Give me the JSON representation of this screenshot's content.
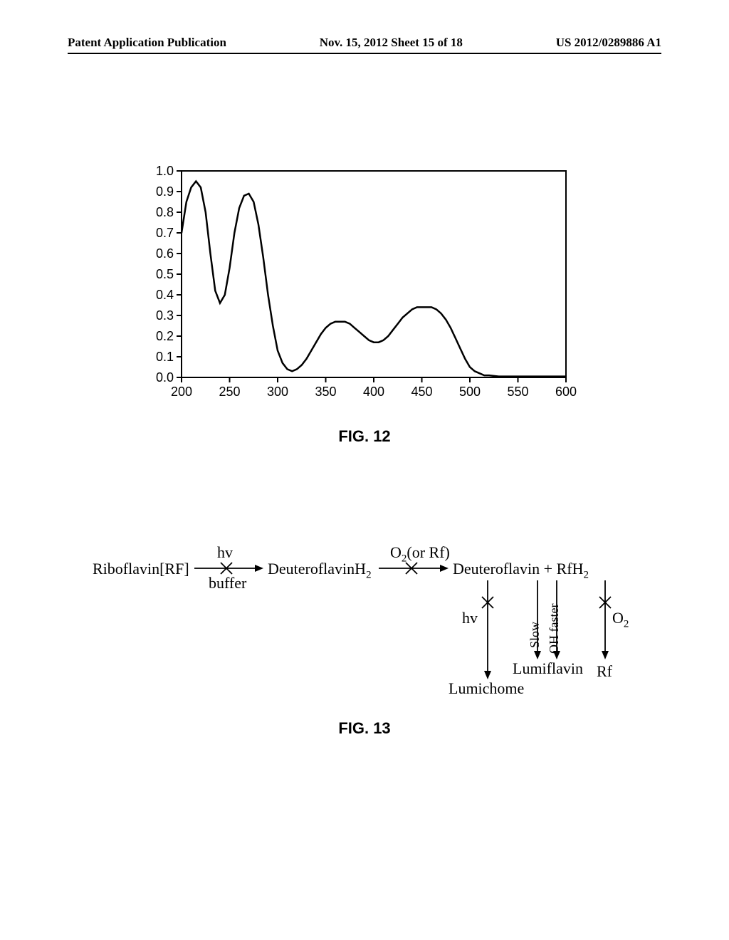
{
  "header": {
    "left": "Patent Application Publication",
    "center": "Nov. 15, 2012  Sheet 15 of 18",
    "right": "US 2012/0289886 A1"
  },
  "fig12": {
    "caption": "FIG. 12",
    "type": "line",
    "xlim": [
      200,
      600
    ],
    "ylim": [
      0.0,
      1.0
    ],
    "xtick_step": 50,
    "ytick_step": 0.1,
    "xticks": [
      200,
      250,
      300,
      350,
      400,
      450,
      500,
      550,
      600
    ],
    "yticks": [
      "0.0",
      "0.1",
      "0.2",
      "0.3",
      "0.4",
      "0.5",
      "0.6",
      "0.7",
      "0.8",
      "0.9",
      "1.0"
    ],
    "line_color": "#000000",
    "background_color": "#ffffff",
    "data": [
      [
        200,
        0.7
      ],
      [
        205,
        0.85
      ],
      [
        210,
        0.92
      ],
      [
        215,
        0.95
      ],
      [
        220,
        0.92
      ],
      [
        225,
        0.8
      ],
      [
        230,
        0.6
      ],
      [
        235,
        0.42
      ],
      [
        240,
        0.36
      ],
      [
        245,
        0.4
      ],
      [
        250,
        0.53
      ],
      [
        255,
        0.7
      ],
      [
        260,
        0.82
      ],
      [
        265,
        0.88
      ],
      [
        270,
        0.89
      ],
      [
        275,
        0.85
      ],
      [
        280,
        0.74
      ],
      [
        285,
        0.58
      ],
      [
        290,
        0.4
      ],
      [
        295,
        0.25
      ],
      [
        300,
        0.13
      ],
      [
        305,
        0.07
      ],
      [
        310,
        0.04
      ],
      [
        315,
        0.03
      ],
      [
        320,
        0.04
      ],
      [
        325,
        0.06
      ],
      [
        330,
        0.09
      ],
      [
        335,
        0.13
      ],
      [
        340,
        0.17
      ],
      [
        345,
        0.21
      ],
      [
        350,
        0.24
      ],
      [
        355,
        0.26
      ],
      [
        360,
        0.27
      ],
      [
        365,
        0.27
      ],
      [
        370,
        0.27
      ],
      [
        375,
        0.26
      ],
      [
        380,
        0.24
      ],
      [
        385,
        0.22
      ],
      [
        390,
        0.2
      ],
      [
        395,
        0.18
      ],
      [
        400,
        0.17
      ],
      [
        405,
        0.17
      ],
      [
        410,
        0.18
      ],
      [
        415,
        0.2
      ],
      [
        420,
        0.23
      ],
      [
        425,
        0.26
      ],
      [
        430,
        0.29
      ],
      [
        435,
        0.31
      ],
      [
        440,
        0.33
      ],
      [
        445,
        0.34
      ],
      [
        450,
        0.34
      ],
      [
        455,
        0.34
      ],
      [
        460,
        0.34
      ],
      [
        465,
        0.33
      ],
      [
        470,
        0.31
      ],
      [
        475,
        0.28
      ],
      [
        480,
        0.24
      ],
      [
        485,
        0.19
      ],
      [
        490,
        0.14
      ],
      [
        495,
        0.09
      ],
      [
        500,
        0.05
      ],
      [
        505,
        0.03
      ],
      [
        510,
        0.02
      ],
      [
        515,
        0.01
      ],
      [
        520,
        0.01
      ],
      [
        530,
        0.005
      ],
      [
        540,
        0.005
      ],
      [
        560,
        0.005
      ],
      [
        580,
        0.005
      ],
      [
        600,
        0.005
      ]
    ]
  },
  "fig13": {
    "caption": "FIG. 13",
    "type": "flowchart",
    "nodes": {
      "riboflavin": "Riboflavin[RF]",
      "deuteroflavinH2_pre": "DeuteroflavinH",
      "deuteroflavinH2_sub": "2",
      "deuteroflavin": "Deuteroflavin",
      "plus": " + ",
      "rfh2_pre": "RfH",
      "rfh2_sub": "2",
      "hv1": "hv",
      "buffer": "buffer",
      "o2_or_rf_pre": "O",
      "o2_or_rf_sub": "2",
      "o2_or_rf_post": "(or Rf)",
      "hv2": "hv",
      "slow": "Slow",
      "oh_faster": "OH  faster",
      "o2_pre": "O",
      "o2_sub": "2",
      "lumichome": "Lumichome",
      "lumiflavin": "Lumiflavin",
      "rf": "Rf"
    }
  }
}
